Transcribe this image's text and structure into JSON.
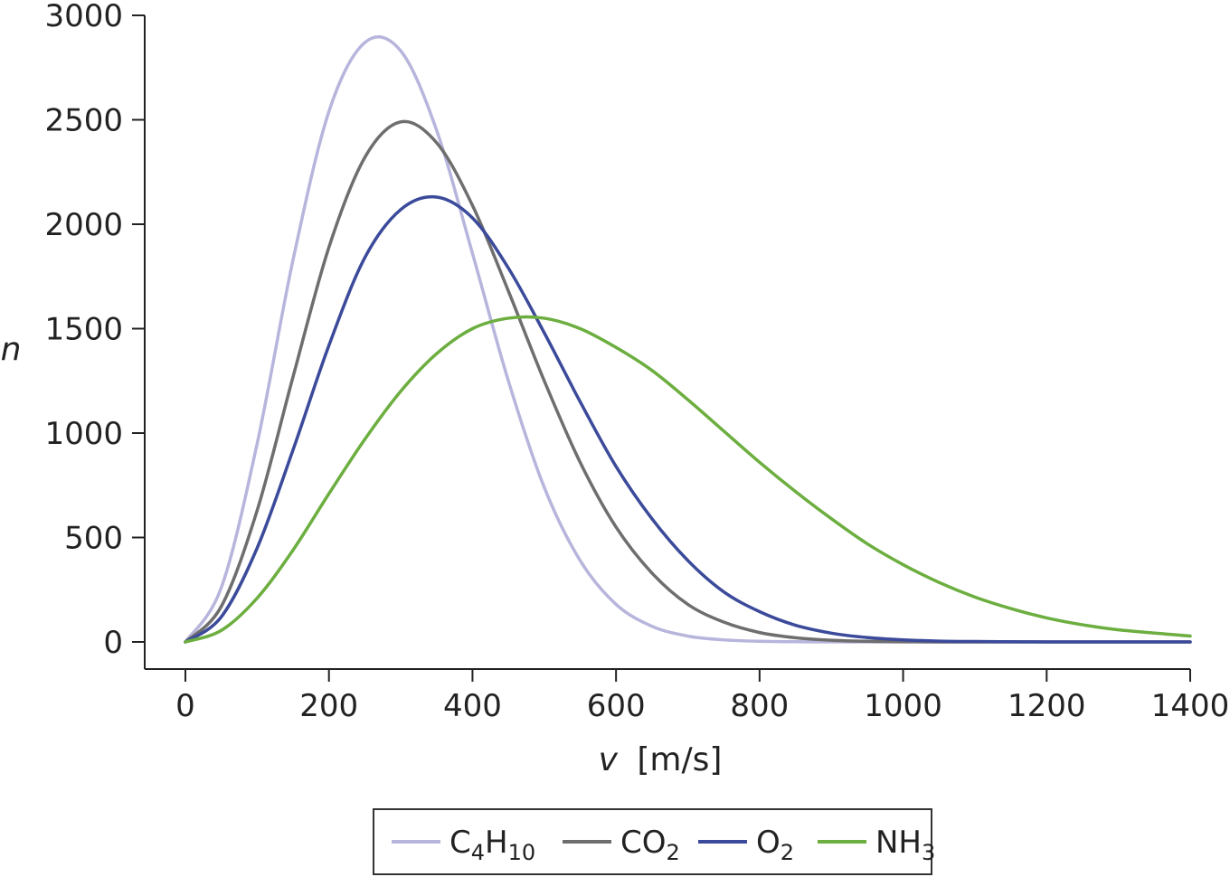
{
  "chart_data": {
    "type": "line",
    "xlabel_var": "v",
    "xlabel_unit": "[m/s]",
    "ylabel": "n",
    "xlim": [
      0,
      1400
    ],
    "ylim": [
      0,
      3000
    ],
    "x_ticks": [
      0,
      200,
      400,
      600,
      800,
      1000,
      1200,
      1400
    ],
    "y_ticks": [
      0,
      500,
      1000,
      1500,
      2000,
      2500,
      3000
    ],
    "legend_position": "bottom-center",
    "x": [
      0,
      50,
      100,
      150,
      200,
      250,
      300,
      350,
      400,
      450,
      500,
      550,
      600,
      650,
      700,
      750,
      800,
      850,
      900,
      950,
      1000,
      1050,
      1100,
      1150,
      1200,
      1250,
      1300,
      1400
    ],
    "series": [
      {
        "name_main": "C",
        "name_sub": "4",
        "name_main2": "H",
        "name_sub2": "10",
        "color": "#b7b5dc",
        "values": [
          0,
          260,
          950,
          1830,
          2540,
          2870,
          2830,
          2450,
          1860,
          1250,
          740,
          390,
          180,
          75,
          28,
          10,
          3,
          1,
          0,
          0,
          0,
          0,
          0,
          0,
          0,
          0,
          0,
          0
        ]
      },
      {
        "name_main": "CO",
        "name_sub": "2",
        "name_main2": "",
        "name_sub2": "",
        "color": "#6e6e6e",
        "values": [
          0,
          170,
          630,
          1270,
          1890,
          2320,
          2490,
          2390,
          2090,
          1680,
          1250,
          860,
          550,
          330,
          180,
          95,
          45,
          20,
          8,
          3,
          1,
          0,
          0,
          0,
          0,
          0,
          0,
          0
        ]
      },
      {
        "name_main": "O",
        "name_sub": "2",
        "name_main2": "",
        "name_sub2": "",
        "color": "#3b4a9a",
        "values": [
          0,
          120,
          450,
          920,
          1420,
          1840,
          2070,
          2130,
          2030,
          1790,
          1480,
          1150,
          840,
          590,
          390,
          240,
          145,
          80,
          42,
          21,
          10,
          4,
          2,
          1,
          0,
          0,
          0,
          0
        ]
      },
      {
        "name_main": "NH",
        "name_sub": "3",
        "name_main2": "",
        "name_sub2": "",
        "color": "#6cae3f",
        "values": [
          0,
          55,
          210,
          440,
          710,
          970,
          1200,
          1380,
          1500,
          1550,
          1550,
          1500,
          1410,
          1300,
          1160,
          1010,
          860,
          720,
          590,
          470,
          370,
          285,
          215,
          160,
          115,
          82,
          58,
          28
        ]
      }
    ]
  }
}
